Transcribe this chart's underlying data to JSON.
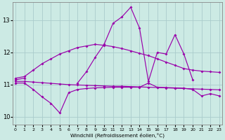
{
  "xlabel": "Windchill (Refroidissement éolien,°C)",
  "x_ticks": [
    0,
    1,
    2,
    3,
    4,
    5,
    6,
    7,
    8,
    9,
    10,
    11,
    12,
    13,
    14,
    15,
    16,
    17,
    18,
    19,
    20,
    21,
    22,
    23
  ],
  "y_ticks": [
    10,
    11,
    12,
    13
  ],
  "ylim": [
    9.75,
    13.55
  ],
  "xlim": [
    -0.3,
    23.3
  ],
  "bg_color": "#cceae4",
  "grid_color": "#aacccc",
  "line_color": "#9900aa",
  "series": {
    "main_zigzag": [
      11.15,
      11.2,
      null,
      null,
      null,
      null,
      null,
      11.05,
      11.4,
      11.85,
      12.25,
      12.9,
      13.1,
      13.4,
      12.75,
      11.1,
      12.0,
      11.95,
      12.55,
      11.95,
      11.15,
      null,
      null,
      null
    ],
    "smooth_arc": [
      11.2,
      11.25,
      11.45,
      11.65,
      11.8,
      11.95,
      12.05,
      12.15,
      12.2,
      12.25,
      12.22,
      12.18,
      12.12,
      12.05,
      11.97,
      11.9,
      11.8,
      11.7,
      11.6,
      11.5,
      11.45,
      11.42,
      11.4,
      11.38
    ],
    "flat_line": [
      11.1,
      11.1,
      11.08,
      11.06,
      11.04,
      11.02,
      11.0,
      10.99,
      10.98,
      10.97,
      10.96,
      10.95,
      10.95,
      10.94,
      10.93,
      10.92,
      10.91,
      10.9,
      10.89,
      10.88,
      10.87,
      10.86,
      10.85,
      10.84
    ],
    "lower_zigzag": [
      11.05,
      11.05,
      10.85,
      10.62,
      10.42,
      10.12,
      10.75,
      10.85,
      10.88,
      10.9,
      10.91,
      10.92,
      10.92,
      10.92,
      10.92,
      11.05,
      10.92,
      10.91,
      10.9,
      10.89,
      10.85,
      10.65,
      10.72,
      10.65
    ]
  }
}
